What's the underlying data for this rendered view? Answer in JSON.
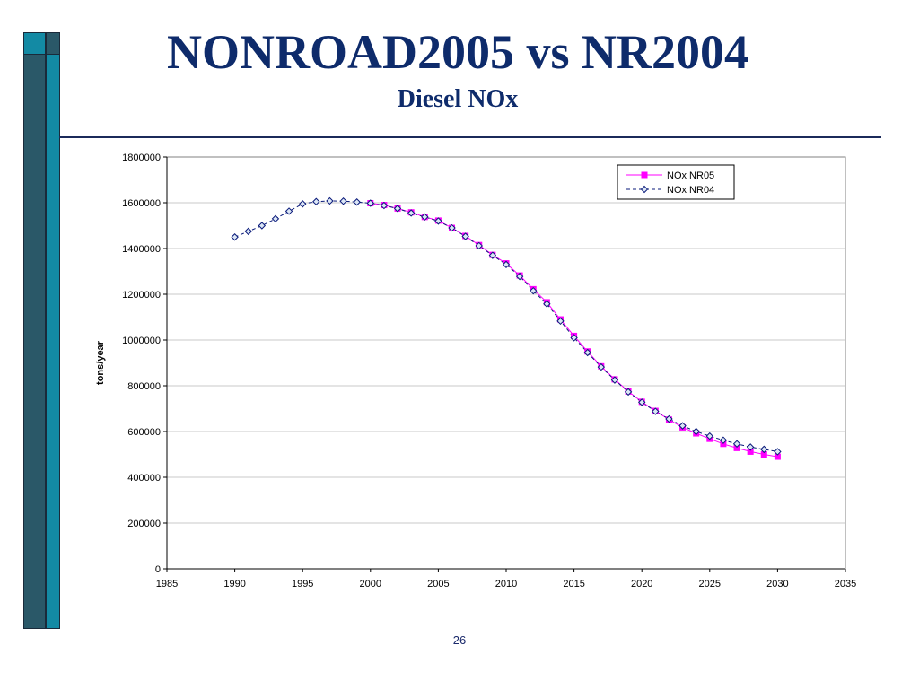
{
  "slide": {
    "title": "NONROAD2005 vs NR2004",
    "subtitle": "Diesel NOx",
    "page_number": "26",
    "colors": {
      "title": "#0e2b6b",
      "bar_dark": "#2a5868",
      "bar_cyan": "#138aa4",
      "rule": "#1b2a5a"
    }
  },
  "chart_data": {
    "type": "line",
    "title": "",
    "xlabel": "",
    "ylabel": "tons/year",
    "xlim": [
      1985,
      2035
    ],
    "ylim": [
      0,
      1800000
    ],
    "x_ticks": [
      "1985",
      "1990",
      "1995",
      "2000",
      "2005",
      "2010",
      "2015",
      "2020",
      "2025",
      "2030",
      "2035"
    ],
    "y_ticks": [
      "0",
      "200000",
      "400000",
      "600000",
      "800000",
      "1000000",
      "1200000",
      "1400000",
      "1600000",
      "1800000"
    ],
    "grid": "horizontal",
    "legend_position": "top-right",
    "series": [
      {
        "name": "NOx NR05",
        "color": "#ff00ff",
        "line_style": "solid",
        "marker": "square",
        "x": [
          2000,
          2001,
          2002,
          2003,
          2004,
          2005,
          2006,
          2007,
          2008,
          2009,
          2010,
          2011,
          2012,
          2013,
          2014,
          2015,
          2016,
          2017,
          2018,
          2019,
          2020,
          2021,
          2022,
          2023,
          2024,
          2025,
          2026,
          2027,
          2028,
          2029,
          2030
        ],
        "y": [
          1598000,
          1590000,
          1575000,
          1558000,
          1538000,
          1522000,
          1490000,
          1455000,
          1415000,
          1372000,
          1335000,
          1282000,
          1222000,
          1165000,
          1090000,
          1018000,
          950000,
          885000,
          828000,
          775000,
          730000,
          690000,
          652000,
          618000,
          592000,
          568000,
          546000,
          528000,
          512000,
          500000,
          490000
        ]
      },
      {
        "name": "NOx NR04",
        "color": "#0a1a7a",
        "line_style": "dashed",
        "marker": "diamond",
        "x": [
          1990,
          1991,
          1992,
          1993,
          1994,
          1995,
          1996,
          1997,
          1998,
          1999,
          2000,
          2001,
          2002,
          2003,
          2004,
          2005,
          2006,
          2007,
          2008,
          2009,
          2010,
          2011,
          2012,
          2013,
          2014,
          2015,
          2016,
          2017,
          2018,
          2019,
          2020,
          2021,
          2022,
          2023,
          2024,
          2025,
          2026,
          2027,
          2028,
          2029,
          2030
        ],
        "y": [
          1450000,
          1475000,
          1500000,
          1530000,
          1563000,
          1595000,
          1605000,
          1608000,
          1607000,
          1603000,
          1598000,
          1588000,
          1575000,
          1555000,
          1538000,
          1520000,
          1490000,
          1453000,
          1412000,
          1370000,
          1330000,
          1278000,
          1215000,
          1158000,
          1083000,
          1010000,
          945000,
          882000,
          825000,
          773000,
          728000,
          688000,
          655000,
          625000,
          600000,
          580000,
          562000,
          546000,
          532000,
          522000,
          512000
        ]
      }
    ]
  }
}
